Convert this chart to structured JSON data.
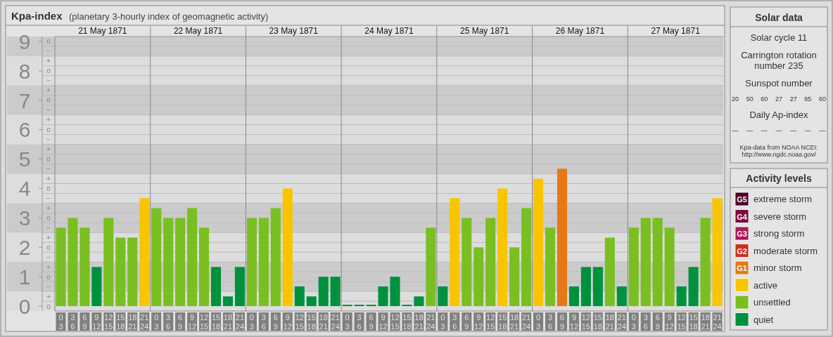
{
  "chart_data": [
    {
      "type": "bar",
      "title": "Kpa-index",
      "subtitle": "(planetary 3-hourly index of geomagnetic activity)",
      "legend_title": "Activity levels",
      "legend": "right",
      "grid": true,
      "bands": [
        {
          "axis": "y",
          "from": 0.5,
          "to": 1.5,
          "color": "#cbcbcb"
        },
        {
          "axis": "y",
          "from": 2.5,
          "to": 3.5,
          "color": "#cbcbcb"
        },
        {
          "axis": "y",
          "from": 4.5,
          "to": 5.5,
          "color": "#cbcbcb"
        },
        {
          "axis": "y",
          "from": 6.5,
          "to": 7.5,
          "color": "#cbcbcb"
        },
        {
          "axis": "y",
          "from": 8.5,
          "to": 9.1667,
          "color": "#cbcbcb"
        }
      ],
      "categories": [
        "0 3",
        "3 6",
        "6 9",
        "9 12",
        "12 15",
        "15 18",
        "18 21",
        "21 24",
        "0 3",
        "3 6",
        "6 9",
        "9 12",
        "12 15",
        "15 18",
        "18 21",
        "21 24",
        "0 3",
        "3 6",
        "6 9",
        "9 12",
        "12 15",
        "15 18",
        "18 21",
        "21 24",
        "0 3",
        "3 6",
        "6 9",
        "9 12",
        "12 15",
        "15 18",
        "18 21",
        "21 24",
        "0 3",
        "3 6",
        "6 9",
        "9 12",
        "12 15",
        "15 18",
        "18 21",
        "21 24",
        "0 3",
        "3 6",
        "6 9",
        "9 12",
        "12 15",
        "15 18",
        "18 21",
        "21 24",
        "0 3",
        "3 6",
        "6 9",
        "9 12",
        "12 15",
        "15 18",
        "18 21",
        "21 24"
      ],
      "series": [
        {
          "name": "extreme storm",
          "color": "#4a0026",
          "values": [
            null,
            null,
            null,
            null,
            null,
            null,
            null,
            null,
            null,
            null,
            null,
            null,
            null,
            null,
            null,
            null,
            null,
            null,
            null,
            null,
            null,
            null,
            null,
            null,
            null,
            null,
            null,
            null,
            null,
            null,
            null,
            null,
            null,
            null,
            null,
            null,
            null,
            null,
            null,
            null,
            null,
            null,
            null,
            null,
            null,
            null,
            null,
            null,
            null,
            null,
            null,
            null,
            null,
            null,
            null,
            null
          ]
        },
        {
          "name": "severe storm",
          "color": "#7a0a40",
          "values": [
            null,
            null,
            null,
            null,
            null,
            null,
            null,
            null,
            null,
            null,
            null,
            null,
            null,
            null,
            null,
            null,
            null,
            null,
            null,
            null,
            null,
            null,
            null,
            null,
            null,
            null,
            null,
            null,
            null,
            null,
            null,
            null,
            null,
            null,
            null,
            null,
            null,
            null,
            null,
            null,
            null,
            null,
            null,
            null,
            null,
            null,
            null,
            null,
            null,
            null,
            null,
            null,
            null,
            null,
            null,
            null
          ]
        },
        {
          "name": "strong storm",
          "color": "#b0155c",
          "values": [
            null,
            null,
            null,
            null,
            null,
            null,
            null,
            null,
            null,
            null,
            null,
            null,
            null,
            null,
            null,
            null,
            null,
            null,
            null,
            null,
            null,
            null,
            null,
            null,
            null,
            null,
            null,
            null,
            null,
            null,
            null,
            null,
            null,
            null,
            null,
            null,
            null,
            null,
            null,
            null,
            null,
            null,
            null,
            null,
            null,
            null,
            null,
            null,
            null,
            null,
            null,
            null,
            null,
            null,
            null,
            null
          ]
        },
        {
          "name": "moderate storm",
          "color": "#d22d1e",
          "values": [
            null,
            null,
            null,
            null,
            null,
            null,
            null,
            null,
            null,
            null,
            null,
            null,
            null,
            null,
            null,
            null,
            null,
            null,
            null,
            null,
            null,
            null,
            null,
            null,
            null,
            null,
            null,
            null,
            null,
            null,
            null,
            null,
            null,
            null,
            null,
            null,
            null,
            null,
            null,
            null,
            null,
            null,
            null,
            null,
            null,
            null,
            null,
            null,
            null,
            null,
            null,
            null,
            null,
            null,
            null,
            null
          ]
        },
        {
          "name": "minor storm",
          "color": "#e67817",
          "values": [
            null,
            null,
            null,
            null,
            null,
            null,
            null,
            null,
            null,
            null,
            null,
            null,
            null,
            null,
            null,
            null,
            null,
            null,
            null,
            null,
            null,
            null,
            null,
            null,
            null,
            null,
            null,
            null,
            null,
            null,
            null,
            null,
            null,
            null,
            null,
            null,
            null,
            null,
            null,
            null,
            null,
            null,
            4.67,
            null,
            null,
            null,
            null,
            null,
            null,
            null,
            null,
            null,
            null,
            null,
            null,
            null
          ]
        },
        {
          "name": "active",
          "color": "#f9c500",
          "values": [
            null,
            null,
            null,
            null,
            null,
            null,
            null,
            3.67,
            null,
            null,
            null,
            null,
            null,
            null,
            null,
            null,
            null,
            null,
            null,
            4,
            null,
            null,
            null,
            null,
            null,
            null,
            null,
            null,
            null,
            null,
            null,
            null,
            null,
            3.67,
            null,
            null,
            null,
            4,
            null,
            null,
            4.33,
            null,
            null,
            null,
            null,
            null,
            null,
            null,
            null,
            null,
            null,
            null,
            null,
            null,
            null,
            3.67
          ]
        },
        {
          "name": "unsettled",
          "color": "#7abf21",
          "values": [
            2.67,
            3,
            2.67,
            null,
            3,
            2.33,
            2.33,
            null,
            3.33,
            3,
            3,
            3.33,
            2.67,
            null,
            null,
            null,
            3,
            3,
            3.33,
            null,
            null,
            null,
            null,
            null,
            null,
            null,
            null,
            null,
            null,
            null,
            null,
            2.67,
            null,
            null,
            3,
            2,
            3,
            null,
            2,
            3.33,
            null,
            2.67,
            null,
            null,
            null,
            null,
            2.33,
            null,
            2.67,
            3,
            3,
            2.67,
            null,
            null,
            3,
            null
          ]
        },
        {
          "name": "quiet",
          "color": "#00913f",
          "values": [
            null,
            null,
            null,
            1.33,
            null,
            null,
            null,
            null,
            null,
            null,
            null,
            null,
            null,
            1.33,
            0.33,
            1.33,
            null,
            null,
            null,
            null,
            0.67,
            0.33,
            1,
            1,
            0,
            0,
            0,
            0.67,
            1,
            0,
            0.33,
            null,
            0.67,
            null,
            null,
            null,
            null,
            null,
            null,
            null,
            null,
            null,
            null,
            0.67,
            1.33,
            1.33,
            null,
            0.67,
            null,
            null,
            null,
            null,
            0.67,
            1.33,
            null,
            null
          ]
        }
      ],
      "ylim": [
        -0.1667,
        9.1667
      ],
      "yticks": [
        0,
        1,
        2,
        3,
        4,
        5,
        6,
        7,
        8,
        9
      ],
      "annotations": [
        "21 May 1871",
        "22 May 1871",
        "23 May 1871",
        "24 May 1871",
        "25 May 1871",
        "26 May 1871",
        "27 May 1871",
        "G5",
        "G4",
        "G3",
        "G2",
        "G1",
        "o",
        "+",
        "−",
        "o",
        "+",
        "−",
        "o",
        "+",
        "−",
        "o",
        "+",
        "−",
        "o",
        "+",
        "−",
        "o",
        "+",
        "−",
        "o",
        "+",
        "−",
        "o",
        "+",
        "−",
        "o",
        "+",
        "−",
        "o"
      ]
    },
    {
      "type": "other",
      "title": "Solar data",
      "annotations": [
        "Solar cycle 11",
        "Carrington rotation number 235",
        "Sunspot number",
        "20 50 60 27 27 85 60",
        "Daily Ap-index",
        "— — — — — — —",
        "Kpa-data from NOAA NCEI: http://www.ngdc.noaa.gov/"
      ]
    }
  ]
}
